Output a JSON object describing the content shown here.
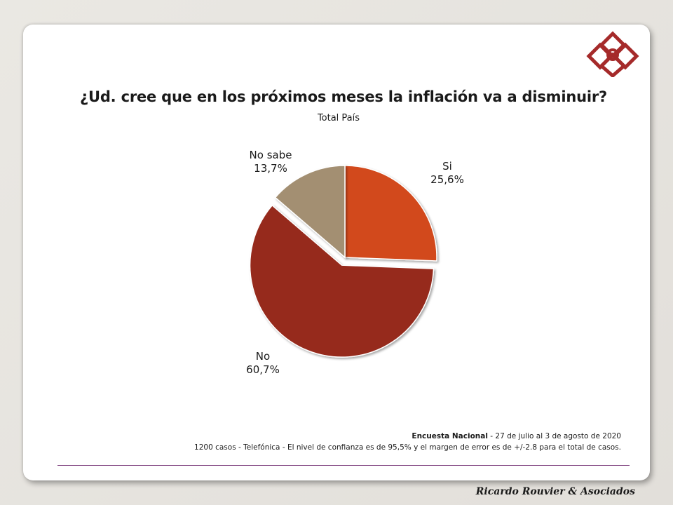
{
  "chart_data": {
    "type": "pie",
    "title": "¿Ud. cree que en los próximos meses la inflación va a disminuir?",
    "subtitle": "Total País",
    "slices": [
      {
        "label": "Si",
        "value": 25.6,
        "display": "25,6%",
        "color": "#d24a1c",
        "exploded": false
      },
      {
        "label": "No",
        "value": 60.7,
        "display": "60,7%",
        "color": "#962b1e",
        "exploded": true
      },
      {
        "label": "No sabe",
        "value": 13.7,
        "display": "13,7%",
        "color": "#a38f72",
        "exploded": false
      }
    ],
    "legend": "none"
  },
  "footer": {
    "line1_bold": "Encuesta Nacional",
    "line1_rest": " - 27 de julio al 3 de agosto de 2020",
    "line2": "1200 casos - Telefónica   - El nivel de confianza  es de 95,5% y el margen de error es de +/-2.8 para el total  de casos."
  },
  "brand": "Ricardo Rouvier & Asociados"
}
